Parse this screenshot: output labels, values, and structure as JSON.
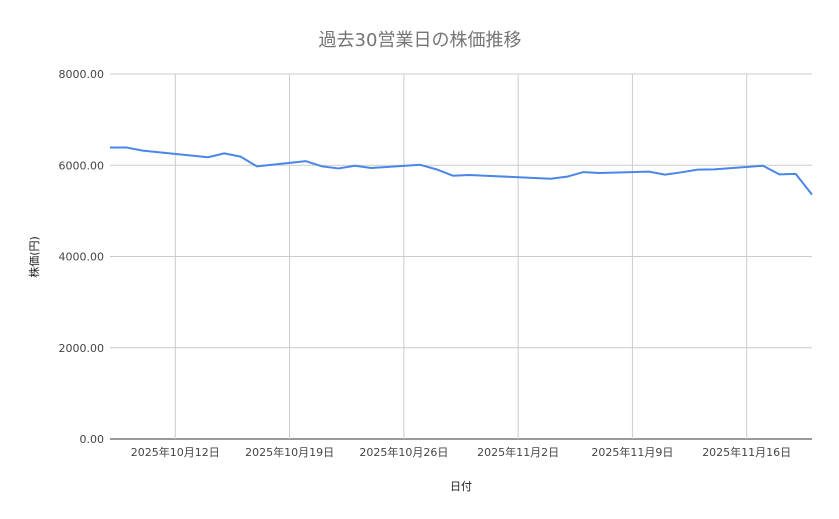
{
  "chart_data": {
    "type": "line",
    "title": "過去30営業日の株価推移",
    "xlabel": "日付",
    "ylabel": "株価(円)",
    "ylim": [
      0,
      8000
    ],
    "yticks": [
      0,
      2000,
      4000,
      6000,
      8000
    ],
    "ytick_labels": [
      "0.00",
      "2000.00",
      "4000.00",
      "6000.00",
      "8000.00"
    ],
    "xlim": [
      "2025-10-08",
      "2025-11-20"
    ],
    "xticks": [
      "2025-10-12",
      "2025-10-19",
      "2025-10-26",
      "2025-11-02",
      "2025-11-09",
      "2025-11-16"
    ],
    "xtick_labels": [
      "2025年10月12日",
      "2025年10月19日",
      "2025年10月26日",
      "2025年11月2日",
      "2025年11月9日",
      "2025年11月16日"
    ],
    "grid": true,
    "line_color": "#4a86e8",
    "x": [
      "2025-10-08",
      "2025-10-09",
      "2025-10-10",
      "2025-10-14",
      "2025-10-15",
      "2025-10-16",
      "2025-10-17",
      "2025-10-20",
      "2025-10-21",
      "2025-10-22",
      "2025-10-23",
      "2025-10-24",
      "2025-10-27",
      "2025-10-28",
      "2025-10-29",
      "2025-10-30",
      "2025-10-31",
      "2025-11-04",
      "2025-11-05",
      "2025-11-06",
      "2025-11-07",
      "2025-11-10",
      "2025-11-11",
      "2025-11-12",
      "2025-11-13",
      "2025-11-14",
      "2025-11-17",
      "2025-11-18",
      "2025-11-19",
      "2025-11-20"
    ],
    "values": [
      6390,
      6390,
      6320,
      6175,
      6260,
      6190,
      5975,
      6090,
      5975,
      5930,
      5990,
      5940,
      6010,
      5910,
      5770,
      5785,
      5770,
      5705,
      5750,
      5850,
      5830,
      5860,
      5795,
      5845,
      5905,
      5910,
      5990,
      5800,
      5810,
      5355
    ]
  }
}
